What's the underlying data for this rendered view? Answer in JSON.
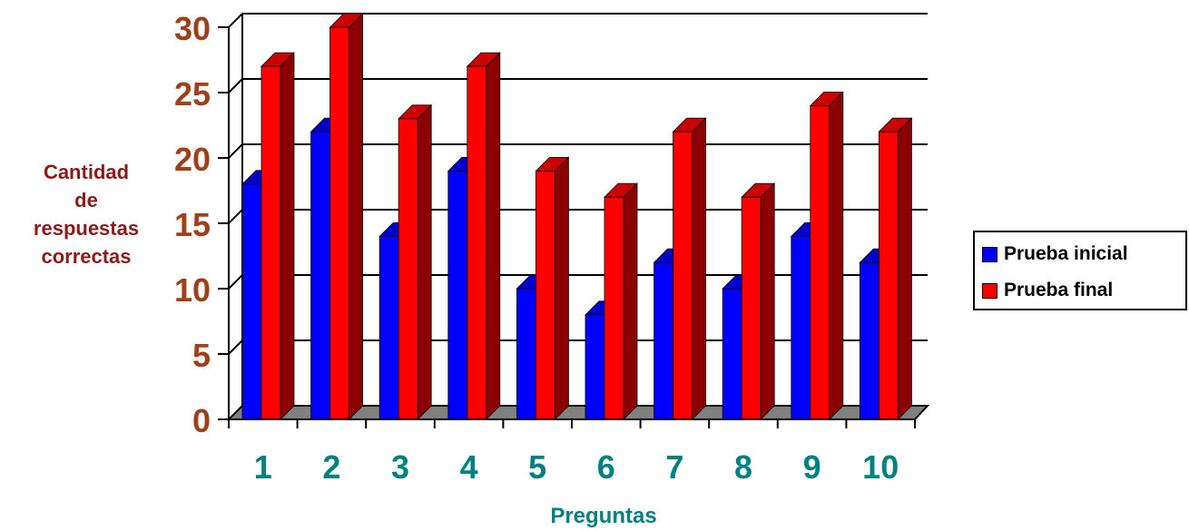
{
  "chart_data": {
    "type": "bar",
    "title": "",
    "xlabel": "Preguntas",
    "ylabel_lines": [
      "Cantidad",
      "de",
      "respuestas",
      "correctas"
    ],
    "categories": [
      "1",
      "2",
      "3",
      "4",
      "5",
      "6",
      "7",
      "8",
      "9",
      "10"
    ],
    "series": [
      {
        "name": "Prueba inicial",
        "color": "#0000ff",
        "values": [
          18,
          22,
          14,
          19,
          10,
          8,
          12,
          10,
          14,
          12
        ]
      },
      {
        "name": "Prueba final",
        "color": "#ff0000",
        "values": [
          27,
          30,
          23,
          27,
          19,
          17,
          22,
          17,
          24,
          22
        ]
      }
    ],
    "ylim": [
      0,
      30
    ],
    "yticks": [
      "0",
      "5",
      "10",
      "15",
      "20",
      "25",
      "30"
    ],
    "grid": true,
    "legend_position": "right",
    "colors": {
      "ytick": "#a0401a",
      "xtick": "#008080",
      "ylabel": "#8b1a1a",
      "xlabel": "#008080",
      "floor": "#808080"
    }
  }
}
